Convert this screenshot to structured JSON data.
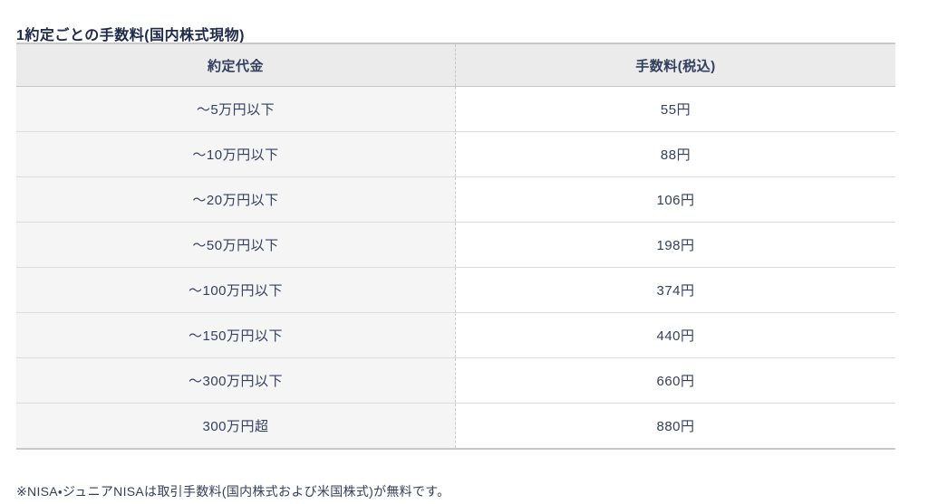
{
  "page_title": "1約定ごとの手数料(国内株式現物)",
  "table": {
    "columns": [
      "約定代金",
      "手数料(税込)"
    ],
    "rows": [
      {
        "price_range": "〜5万円以下",
        "fee": "55円"
      },
      {
        "price_range": "〜10万円以下",
        "fee": "88円"
      },
      {
        "price_range": "〜20万円以下",
        "fee": "106円"
      },
      {
        "price_range": "〜50万円以下",
        "fee": "198円"
      },
      {
        "price_range": "〜100万円以下",
        "fee": "374円"
      },
      {
        "price_range": "〜150万円以下",
        "fee": "440円"
      },
      {
        "price_range": "〜300万円以下",
        "fee": "660円"
      },
      {
        "price_range": "300万円超",
        "fee": "880円"
      }
    ]
  },
  "footnote": "※NISA・ジュニアNISAは取引手数料(国内株式および米国株式)が無料です。",
  "colors": {
    "title_text": "#1e2a4a",
    "body_text": "#333f5e",
    "header_bg": "#ebebeb",
    "left_cell_bg": "#f5f5f5",
    "right_cell_bg": "#ffffff",
    "border_strong": "#c9c9c9",
    "border_light": "#dddddd"
  }
}
